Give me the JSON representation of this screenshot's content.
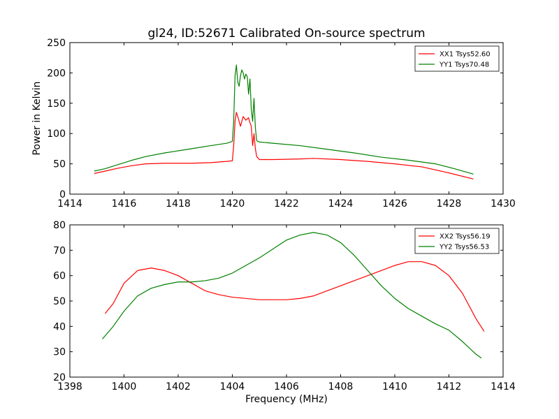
{
  "title": "gl24, ID:52671 Calibrated On-source spectrum",
  "colors": {
    "xx": "#ff0000",
    "yy": "#008000"
  },
  "chart_data": [
    {
      "type": "line",
      "panel": "top",
      "title": "gl24, ID:52671 Calibrated On-source spectrum",
      "xlabel": "",
      "ylabel": "Power in Kelvin",
      "xlim": [
        1414,
        1430
      ],
      "ylim": [
        0,
        250
      ],
      "xticks": [
        1414,
        1416,
        1418,
        1420,
        1422,
        1424,
        1426,
        1428,
        1430
      ],
      "yticks": [
        0,
        50,
        100,
        150,
        200,
        250
      ],
      "legend_position": "top-right",
      "grid": false,
      "series": [
        {
          "name": "XX1 Tsys52.60",
          "color": "#ff0000",
          "points": [
            [
              1414.9,
              34
            ],
            [
              1415.3,
              38
            ],
            [
              1415.8,
              43
            ],
            [
              1416.3,
              47
            ],
            [
              1416.8,
              50
            ],
            [
              1417.5,
              51
            ],
            [
              1418.5,
              51
            ],
            [
              1419.2,
              52
            ],
            [
              1419.8,
              54
            ],
            [
              1420.0,
              55
            ],
            [
              1420.05,
              80
            ],
            [
              1420.1,
              120
            ],
            [
              1420.15,
              135
            ],
            [
              1420.22,
              125
            ],
            [
              1420.3,
              112
            ],
            [
              1420.4,
              128
            ],
            [
              1420.5,
              122
            ],
            [
              1420.6,
              126
            ],
            [
              1420.65,
              118
            ],
            [
              1420.7,
              112
            ],
            [
              1420.75,
              80
            ],
            [
              1420.8,
              100
            ],
            [
              1420.85,
              75
            ],
            [
              1420.9,
              62
            ],
            [
              1421.0,
              57
            ],
            [
              1421.5,
              57
            ],
            [
              1422.5,
              58
            ],
            [
              1423.0,
              59
            ],
            [
              1424.0,
              57
            ],
            [
              1425.0,
              54
            ],
            [
              1426.0,
              50
            ],
            [
              1427.0,
              45
            ],
            [
              1428.0,
              35
            ],
            [
              1428.9,
              25
            ]
          ]
        },
        {
          "name": "YY1 Tsys70.48",
          "color": "#008000",
          "points": [
            [
              1414.9,
              38
            ],
            [
              1415.3,
              42
            ],
            [
              1415.8,
              49
            ],
            [
              1416.3,
              56
            ],
            [
              1416.8,
              62
            ],
            [
              1417.5,
              68
            ],
            [
              1418.5,
              75
            ],
            [
              1419.2,
              80
            ],
            [
              1419.8,
              84
            ],
            [
              1420.0,
              87
            ],
            [
              1420.05,
              120
            ],
            [
              1420.1,
              195
            ],
            [
              1420.15,
              213
            ],
            [
              1420.2,
              185
            ],
            [
              1420.25,
              178
            ],
            [
              1420.3,
              195
            ],
            [
              1420.35,
              205
            ],
            [
              1420.4,
              200
            ],
            [
              1420.45,
              190
            ],
            [
              1420.5,
              198
            ],
            [
              1420.55,
              194
            ],
            [
              1420.6,
              165
            ],
            [
              1420.65,
              190
            ],
            [
              1420.7,
              140
            ],
            [
              1420.75,
              120
            ],
            [
              1420.8,
              158
            ],
            [
              1420.85,
              110
            ],
            [
              1420.9,
              88
            ],
            [
              1421.0,
              86
            ],
            [
              1421.5,
              84
            ],
            [
              1422.5,
              80
            ],
            [
              1423.5,
              74
            ],
            [
              1424.5,
              68
            ],
            [
              1425.5,
              61
            ],
            [
              1426.5,
              56
            ],
            [
              1427.5,
              50
            ],
            [
              1428.2,
              42
            ],
            [
              1428.9,
              33
            ]
          ]
        }
      ]
    },
    {
      "type": "line",
      "panel": "bottom",
      "title": "",
      "xlabel": "Frequency (MHz)",
      "ylabel": "",
      "xlim": [
        1398,
        1414
      ],
      "ylim": [
        20,
        80
      ],
      "xticks": [
        1398,
        1400,
        1402,
        1404,
        1406,
        1408,
        1410,
        1412,
        1414
      ],
      "yticks": [
        20,
        30,
        40,
        50,
        60,
        70,
        80
      ],
      "legend_position": "top-right",
      "grid": false,
      "series": [
        {
          "name": "XX2 Tsys56.19",
          "color": "#ff0000",
          "points": [
            [
              1399.3,
              45
            ],
            [
              1399.6,
              49
            ],
            [
              1400.0,
              57
            ],
            [
              1400.5,
              62
            ],
            [
              1401.0,
              63
            ],
            [
              1401.5,
              62
            ],
            [
              1402.0,
              60
            ],
            [
              1402.5,
              57
            ],
            [
              1403.0,
              54
            ],
            [
              1403.5,
              52.5
            ],
            [
              1404.0,
              51.5
            ],
            [
              1405.0,
              50.5
            ],
            [
              1406.0,
              50.5
            ],
            [
              1406.5,
              51
            ],
            [
              1407.0,
              52
            ],
            [
              1407.5,
              54
            ],
            [
              1408.0,
              56
            ],
            [
              1408.5,
              58
            ],
            [
              1409.0,
              60
            ],
            [
              1409.5,
              62
            ],
            [
              1410.0,
              64
            ],
            [
              1410.5,
              65.5
            ],
            [
              1411.0,
              65.5
            ],
            [
              1411.5,
              64
            ],
            [
              1412.0,
              60
            ],
            [
              1412.5,
              53
            ],
            [
              1413.0,
              43
            ],
            [
              1413.3,
              38
            ]
          ]
        },
        {
          "name": "YY2 Tsys56.53",
          "color": "#008000",
          "points": [
            [
              1399.2,
              35
            ],
            [
              1399.6,
              40
            ],
            [
              1400.0,
              46
            ],
            [
              1400.5,
              52
            ],
            [
              1401.0,
              55
            ],
            [
              1401.5,
              56.5
            ],
            [
              1402.0,
              57.5
            ],
            [
              1402.5,
              57.5
            ],
            [
              1403.0,
              58
            ],
            [
              1403.5,
              59
            ],
            [
              1404.0,
              61
            ],
            [
              1404.5,
              64
            ],
            [
              1405.0,
              67
            ],
            [
              1405.5,
              70.5
            ],
            [
              1406.0,
              74
            ],
            [
              1406.5,
              76
            ],
            [
              1407.0,
              77
            ],
            [
              1407.5,
              76
            ],
            [
              1408.0,
              73
            ],
            [
              1408.5,
              68
            ],
            [
              1409.0,
              62
            ],
            [
              1409.5,
              56
            ],
            [
              1410.0,
              51
            ],
            [
              1410.5,
              47
            ],
            [
              1411.0,
              44
            ],
            [
              1411.5,
              41
            ],
            [
              1412.0,
              38.5
            ],
            [
              1412.5,
              34
            ],
            [
              1413.0,
              29
            ],
            [
              1413.2,
              27.5
            ]
          ]
        }
      ]
    }
  ]
}
